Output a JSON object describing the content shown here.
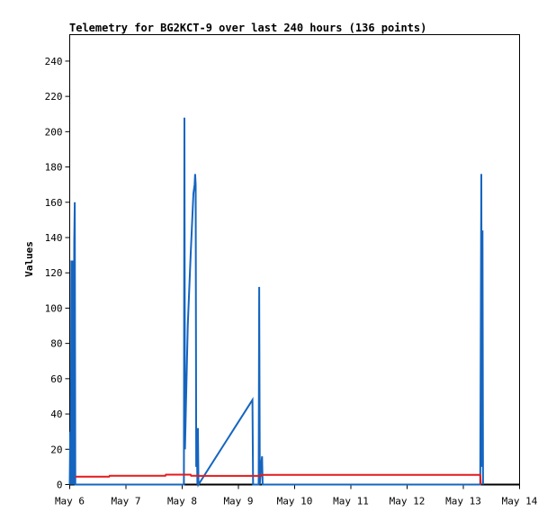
{
  "chart_data": {
    "type": "line",
    "title": "Telemetry for BG2KCT-9 over last 240 hours (136 points)",
    "xlabel": "",
    "ylabel": "Values",
    "x_tick_labels": [
      "May 6",
      "May 7",
      "May 8",
      "May 9",
      "May 10",
      "May 11",
      "May 12",
      "May 13",
      "May 14"
    ],
    "xlim_days": [
      6,
      14
    ],
    "y_ticks": [
      0,
      20,
      40,
      60,
      80,
      100,
      120,
      140,
      160,
      180,
      200,
      220,
      240
    ],
    "ylim": [
      0,
      255
    ],
    "grid": false,
    "series": [
      {
        "color": "#1565c0",
        "points": [
          [
            6.0,
            0
          ],
          [
            6.01,
            30
          ],
          [
            6.02,
            0
          ],
          [
            6.03,
            127
          ],
          [
            6.04,
            0
          ],
          [
            6.05,
            127
          ],
          [
            6.06,
            30
          ],
          [
            6.07,
            0
          ],
          [
            6.08,
            137
          ],
          [
            6.09,
            160
          ],
          [
            6.1,
            0
          ],
          [
            6.1,
            0
          ],
          [
            8.03,
            0
          ],
          [
            8.04,
            208
          ],
          [
            8.05,
            20
          ],
          [
            8.07,
            50
          ],
          [
            8.1,
            90
          ],
          [
            8.15,
            130
          ],
          [
            8.2,
            165
          ],
          [
            8.22,
            170
          ],
          [
            8.23,
            176
          ],
          [
            8.24,
            170
          ],
          [
            8.25,
            10
          ],
          [
            8.26,
            27
          ],
          [
            8.27,
            0
          ],
          [
            8.28,
            32
          ],
          [
            8.29,
            0
          ],
          [
            9.25,
            48
          ],
          [
            9.26,
            0
          ],
          [
            9.36,
            0
          ],
          [
            9.37,
            112
          ],
          [
            9.38,
            0
          ],
          [
            9.4,
            10
          ],
          [
            9.42,
            16
          ],
          [
            9.43,
            0
          ],
          [
            13.3,
            0
          ],
          [
            13.32,
            176
          ],
          [
            13.33,
            10
          ],
          [
            13.34,
            144
          ],
          [
            13.35,
            0
          ]
        ]
      },
      {
        "color": "#e31a1c",
        "points": [
          [
            6.1,
            4.5
          ],
          [
            6.7,
            4.5
          ],
          [
            6.71,
            5.0
          ],
          [
            7.7,
            5.0
          ],
          [
            7.71,
            5.6
          ],
          [
            8.15,
            5.6
          ],
          [
            8.16,
            5.0
          ],
          [
            8.3,
            5.0
          ],
          [
            8.31,
            4.9
          ],
          [
            9.4,
            4.9
          ],
          [
            9.41,
            5.5
          ],
          [
            13.3,
            5.5
          ],
          [
            13.31,
            0
          ]
        ]
      }
    ]
  }
}
